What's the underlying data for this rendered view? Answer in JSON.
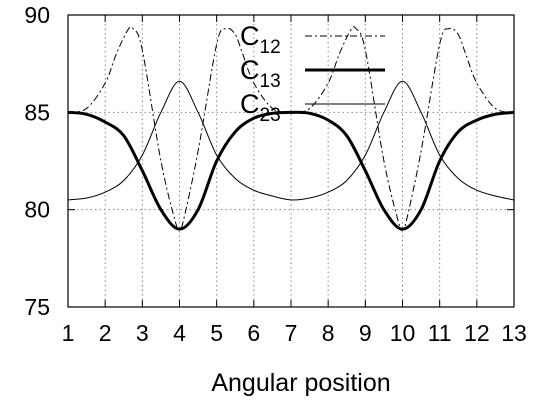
{
  "chart_data": {
    "type": "line",
    "title": "",
    "xlabel": "Angular position",
    "ylabel": "",
    "xlim": [
      1,
      13
    ],
    "ylim": [
      75,
      90
    ],
    "x_ticks": [
      "1",
      "2",
      "3",
      "4",
      "5",
      "6",
      "7",
      "8",
      "9",
      "10",
      "11",
      "12",
      "13"
    ],
    "y_ticks": [
      "75",
      "80",
      "85",
      "90"
    ],
    "grid": true,
    "legend_position": "top-right",
    "series": [
      {
        "name": "C12",
        "name_base": "C",
        "name_sub": "12",
        "style": "dashed",
        "x": [
          1,
          1.5,
          2,
          2.3,
          2.6,
          2.75,
          3,
          3.5,
          3.9,
          4,
          4.1,
          4.5,
          5,
          5.25,
          5.5,
          5.7,
          6,
          6.5,
          7,
          7.5,
          8,
          8.3,
          8.6,
          8.75,
          9,
          9.5,
          9.9,
          10,
          10.1,
          10.5,
          11,
          11.25,
          11.5,
          11.7,
          12,
          12.5,
          13
        ],
        "y": [
          85,
          85.2,
          86.5,
          88,
          89.2,
          89.3,
          88.2,
          82.5,
          79.3,
          79,
          79.4,
          83,
          88.5,
          89.3,
          89,
          88,
          86.5,
          85.2,
          85,
          85.2,
          86.5,
          88,
          89.2,
          89.3,
          88.2,
          82.5,
          79.3,
          79,
          79.4,
          83,
          88.5,
          89.3,
          89,
          88,
          86.5,
          85.2,
          85
        ]
      },
      {
        "name": "C13",
        "name_base": "C",
        "name_sub": "13",
        "style": "thick",
        "x": [
          1,
          1.5,
          2,
          2.5,
          3,
          3.5,
          4,
          4.5,
          5,
          5.5,
          6,
          6.5,
          7,
          7.5,
          8,
          8.5,
          9,
          9.5,
          10,
          10.5,
          11,
          11.5,
          12,
          12.5,
          13
        ],
        "y": [
          85,
          84.9,
          84.5,
          83.8,
          82,
          80,
          79,
          80,
          82.5,
          84,
          84.7,
          84.95,
          85,
          84.95,
          84.6,
          83.8,
          82,
          80,
          79,
          80,
          82.5,
          84,
          84.6,
          84.9,
          85
        ]
      },
      {
        "name": "C23",
        "name_base": "C",
        "name_sub": "23",
        "style": "thin",
        "x": [
          1,
          1.5,
          2,
          2.5,
          3,
          3.5,
          4,
          4.5,
          5,
          5.5,
          6,
          6.5,
          7,
          7.5,
          8,
          8.5,
          9,
          9.5,
          10,
          10.5,
          11,
          11.5,
          12,
          12.5,
          13
        ],
        "y": [
          80.5,
          80.6,
          80.9,
          81.5,
          82.8,
          85,
          86.6,
          85,
          82.8,
          81.6,
          81,
          80.7,
          80.5,
          80.6,
          80.9,
          81.5,
          82.8,
          85,
          86.6,
          85,
          82.8,
          81.6,
          81,
          80.7,
          80.5
        ]
      }
    ]
  }
}
